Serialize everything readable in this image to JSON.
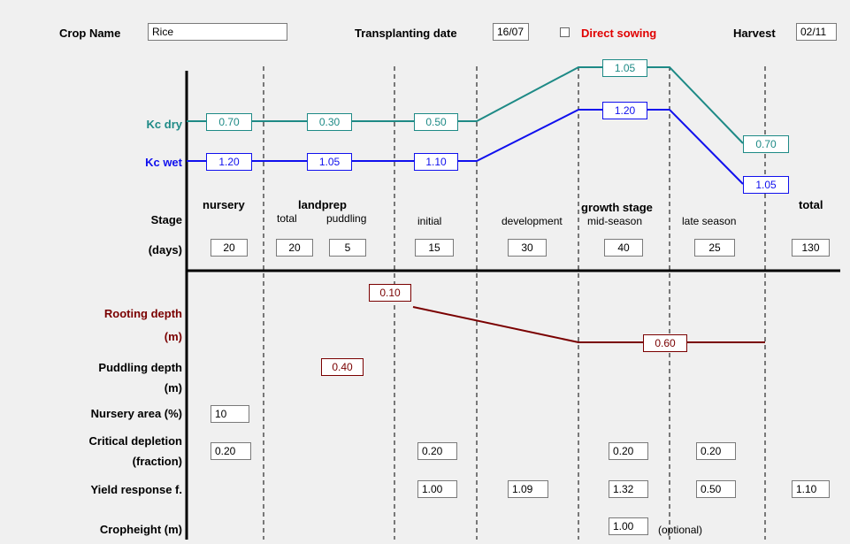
{
  "header": {
    "crop_name_label": "Crop Name",
    "crop_name_value": "Rice",
    "transplanting_label": "Transplanting date",
    "transplanting_value": "16/07",
    "direct_sowing_label": "Direct sowing",
    "direct_sowing_checked": false,
    "harvest_label": "Harvest",
    "harvest_value": "02/11"
  },
  "kc": {
    "dry_label": "Kc dry",
    "wet_label": "Kc wet",
    "dry_values": [
      "0.70",
      "0.30",
      "0.50",
      "1.05",
      "0.70"
    ],
    "wet_values": [
      "1.20",
      "1.05",
      "1.10",
      "1.20",
      "1.05"
    ],
    "dry_color": "#1e8a86",
    "wet_color": "#1010ee"
  },
  "stages": {
    "stage_label": "Stage",
    "days_label": "(days)",
    "nursery": "nursery",
    "landprep": "landprep",
    "landprep_total": "total",
    "landprep_puddling": "puddling",
    "growth_stage": "growth stage",
    "initial": "initial",
    "development": "development",
    "mid_season": "mid-season",
    "late_season": "late season",
    "total": "total",
    "days": {
      "nursery": "20",
      "landprep_total": "20",
      "puddling": "5",
      "initial": "15",
      "development": "30",
      "mid_season": "40",
      "late_season": "25",
      "total": "130"
    }
  },
  "rooting": {
    "label": "Rooting depth",
    "unit": "(m)",
    "start": "0.10",
    "max": "0.60",
    "color": "#7a0000"
  },
  "puddling_depth": {
    "label": "Puddling depth",
    "unit": "(m)",
    "value": "0.40"
  },
  "nursery_area": {
    "label": "Nursery area (%)",
    "value": "10"
  },
  "critical_depletion": {
    "label": "Critical depletion",
    "unit": "(fraction)",
    "nursery": "0.20",
    "initial": "0.20",
    "mid_season": "0.20",
    "late_season": "0.20"
  },
  "yield_response": {
    "label": "Yield response f.",
    "initial": "1.00",
    "development": "1.09",
    "mid_season": "1.32",
    "late_season": "0.50",
    "total": "1.10"
  },
  "cropheight": {
    "label": "Cropheight (m)",
    "value": "1.00",
    "note": "(optional)"
  }
}
